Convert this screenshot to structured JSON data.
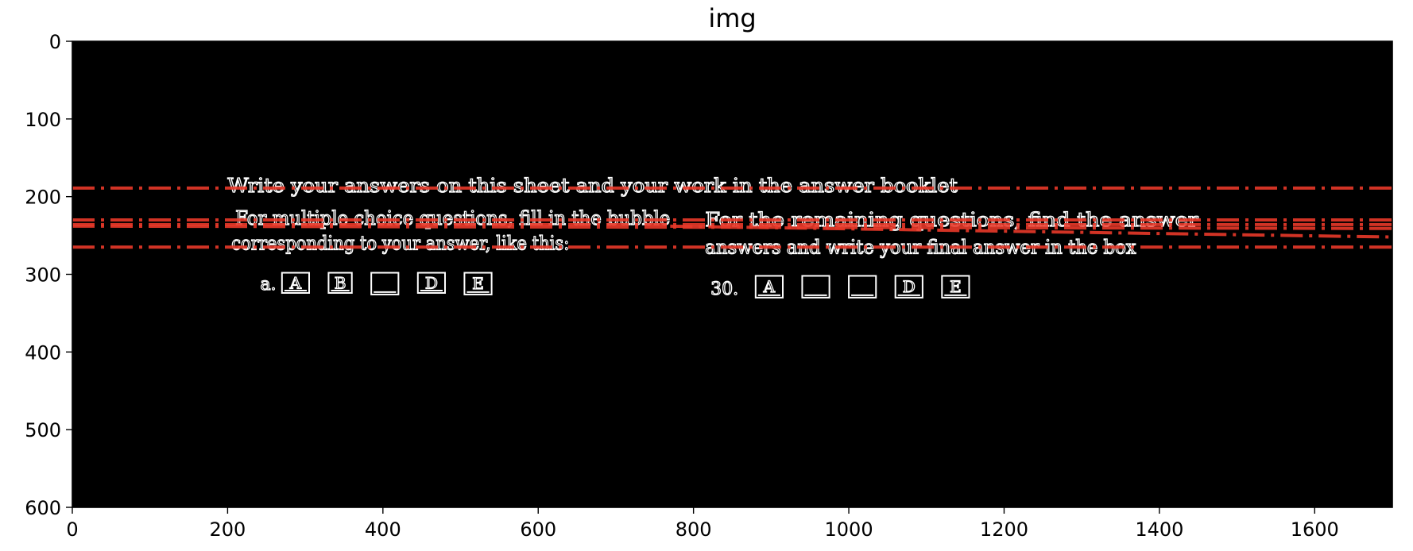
{
  "chart_data": {
    "type": "image",
    "title": "img",
    "xlabel": "",
    "ylabel": "",
    "xlim": [
      0,
      1700
    ],
    "ylim": [
      600,
      0
    ],
    "y_axis_inverted": true,
    "xticks": [
      0,
      200,
      400,
      600,
      800,
      1000,
      1200,
      1400,
      1600
    ],
    "yticks": [
      0,
      100,
      200,
      300,
      400,
      500,
      600
    ],
    "grid": false,
    "background_color": "#000000",
    "edge_color": "#ffffff",
    "line_color": "#e8392a",
    "line_style": "dash-dot",
    "detected_lines": [
      {
        "x": [
          0,
          1700
        ],
        "y": [
          189,
          189
        ]
      },
      {
        "x": [
          0,
          1700
        ],
        "y": [
          230,
          230
        ]
      },
      {
        "x": [
          0,
          1700
        ],
        "y": [
          236,
          236
        ]
      },
      {
        "x": [
          0,
          1700
        ],
        "y": [
          265,
          265
        ]
      },
      {
        "x": [
          770,
          1700
        ],
        "y": [
          238,
          252
        ]
      },
      {
        "x": [
          0,
          1700
        ],
        "y": [
          238,
          241
        ]
      }
    ],
    "text_blocks": [
      {
        "text": "Write your answers on this sheet and your work in the answer booklet",
        "x": [
          200,
          1140
        ],
        "y": 186
      },
      {
        "text": "For multiple choice questions, fill in the bubble",
        "x": [
          210,
          770
        ],
        "y": 228
      },
      {
        "text": "corresponding to your answer, like this:",
        "x": [
          205,
          640
        ],
        "y": 260
      },
      {
        "text": "For the remaining questions, find the answer",
        "x": [
          815,
          1450
        ],
        "y": 230
      },
      {
        "text": "answers and write your final answer in the box",
        "x": [
          815,
          1370
        ],
        "y": 265
      }
    ],
    "marks": [
      {
        "text": "a.",
        "x": 242,
        "y": 312
      },
      {
        "text": "30.",
        "x": 822,
        "y": 318
      }
    ],
    "answer_boxes": [
      {
        "letter": "A",
        "x": [
          270,
          305
        ],
        "y": [
          298,
          324
        ]
      },
      {
        "letter": "B",
        "x": [
          330,
          360
        ],
        "y": [
          298,
          324
        ]
      },
      {
        "letter": "",
        "x": [
          385,
          420
        ],
        "y": [
          298,
          326
        ]
      },
      {
        "letter": "D",
        "x": [
          445,
          480
        ],
        "y": [
          298,
          324
        ]
      },
      {
        "letter": "E",
        "x": [
          505,
          540
        ],
        "y": [
          298,
          326
        ]
      },
      {
        "letter": "A",
        "x": [
          880,
          915
        ],
        "y": [
          302,
          330
        ]
      },
      {
        "letter": "",
        "x": [
          940,
          975
        ],
        "y": [
          302,
          330
        ]
      },
      {
        "letter": "",
        "x": [
          1000,
          1035
        ],
        "y": [
          302,
          330
        ]
      },
      {
        "letter": "D",
        "x": [
          1060,
          1095
        ],
        "y": [
          302,
          330
        ]
      },
      {
        "letter": "E",
        "x": [
          1120,
          1155
        ],
        "y": [
          302,
          330
        ]
      }
    ]
  }
}
